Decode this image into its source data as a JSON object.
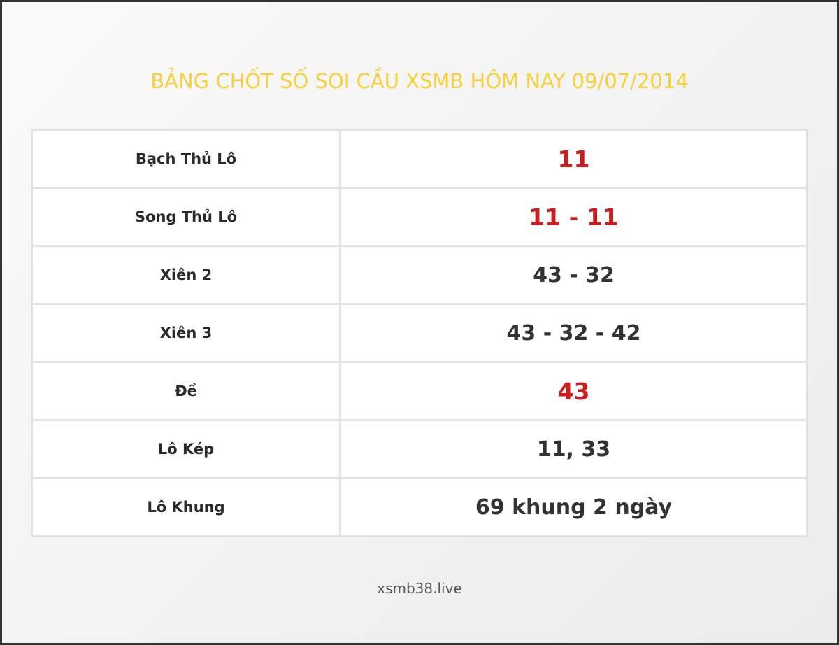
{
  "title": "BẢNG CHỐT SỐ SOI CẦU XSMB HÔM NAY 09/07/2014",
  "rows": [
    {
      "label": "Bạch Thủ Lô",
      "value": "11",
      "highlight": true
    },
    {
      "label": "Song Thủ Lô",
      "value": "11 - 11",
      "highlight": true
    },
    {
      "label": "Xiên 2",
      "value": "43 - 32",
      "highlight": false
    },
    {
      "label": "Xiên 3",
      "value": "43 - 32 - 42",
      "highlight": false
    },
    {
      "label": "Đề",
      "value": "43",
      "highlight": true
    },
    {
      "label": "Lô Kép",
      "value": "11, 33",
      "highlight": false
    },
    {
      "label": "Lô Khung",
      "value": "69 khung 2 ngày",
      "highlight": false
    }
  ],
  "footer": "xsmb38.live",
  "colors": {
    "title": "#f9cf3a",
    "highlight": "#cc1c1c",
    "text": "#333333"
  }
}
